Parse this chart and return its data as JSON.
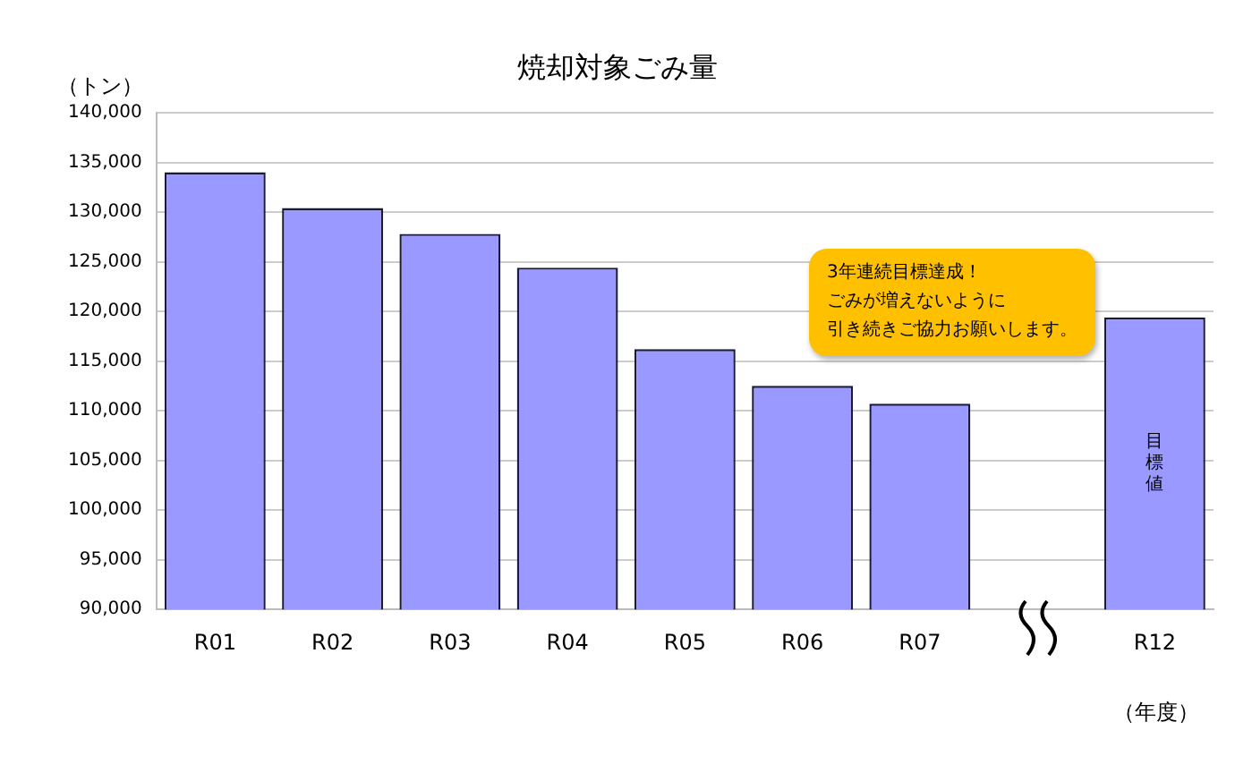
{
  "chart_data": {
    "type": "bar",
    "title": "焼却対象ごみ量",
    "ylabel": "（トン）",
    "xlabel": "（年度）",
    "categories": [
      "R01",
      "R02",
      "R03",
      "R04",
      "R05",
      "R06",
      "R07",
      null,
      "R12"
    ],
    "values": [
      134000,
      130400,
      127800,
      124400,
      116200,
      112500,
      110700,
      null,
      119400
    ],
    "color": "#9999ff",
    "ylim": [
      90000,
      140000
    ],
    "yticks": [
      {
        "value": 90000,
        "label": "90,000"
      },
      {
        "value": 95000,
        "label": "95,000"
      },
      {
        "value": 100000,
        "label": "100,000"
      },
      {
        "value": 105000,
        "label": "105,000"
      },
      {
        "value": 110000,
        "label": "110,000"
      },
      {
        "value": 115000,
        "label": "115,000"
      },
      {
        "value": 120000,
        "label": "120,000"
      },
      {
        "value": 125000,
        "label": "125,000"
      },
      {
        "value": 130000,
        "label": "130,000"
      },
      {
        "value": 135000,
        "label": "135,000"
      },
      {
        "value": 140000,
        "label": "140,000"
      }
    ],
    "grid": "y",
    "legend": false,
    "annotations": [
      "3年連続目標達成！",
      "ごみが増えないように",
      "引き続きご協力お願いします。",
      "目標値"
    ]
  }
}
